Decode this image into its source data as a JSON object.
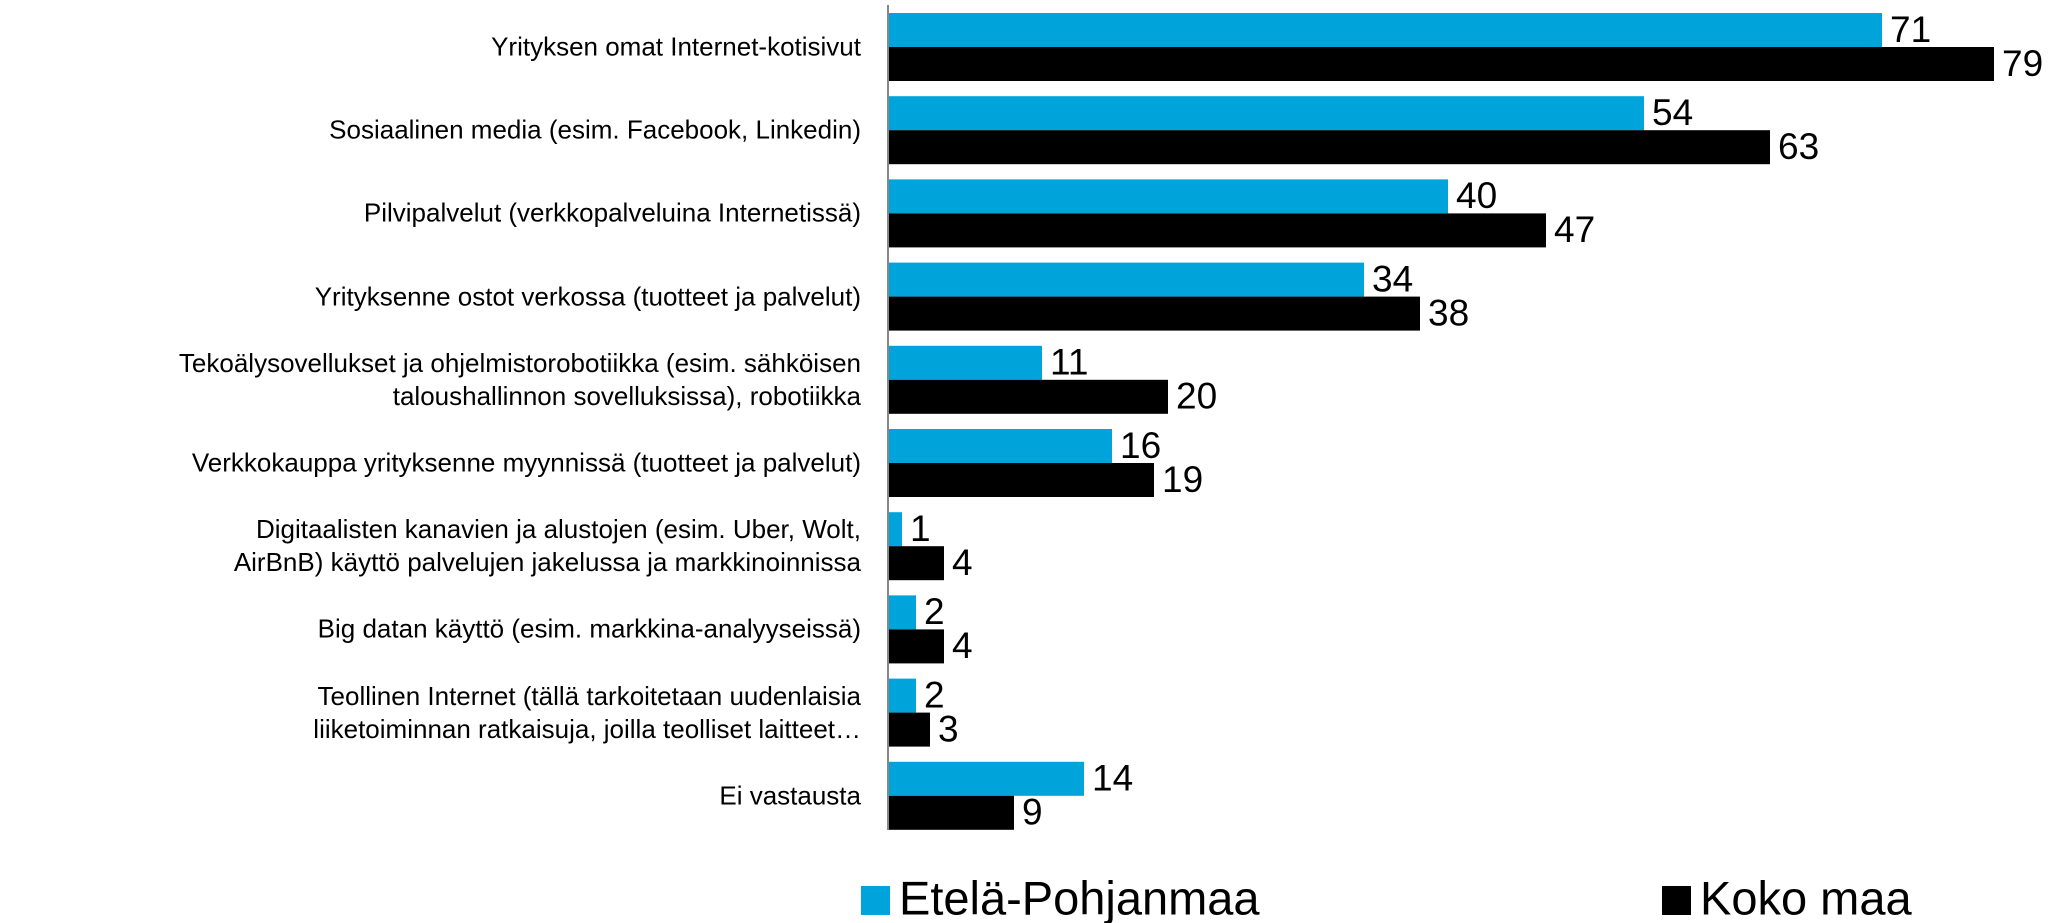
{
  "chart_data": {
    "type": "hbar",
    "categories": [
      "Yrityksen omat Internet-kotisivut",
      "Sosiaalinen media (esim. Facebook, Linkedin)",
      "Pilvipalvelut  (verkkopalveluina Internetissä)",
      "Yrityksenne ostot verkossa (tuotteet ja palvelut)",
      "Tekoälysovellukset ja ohjelmistorobotiikka (esim. sähköisen\ntaloushallinnon sovelluksissa), robotiikka",
      "Verkkokauppa yrityksenne myynnissä (tuotteet ja palvelut)",
      "Digitaalisten kanavien ja alustojen (esim. Uber, Wolt,\nAirBnB) käyttö palvelujen jakelussa ja markkinoinnissa",
      "Big datan käyttö (esim. markkina-analyyseissä)",
      "Teollinen Internet (tällä tarkoitetaan uudenlaisia\nliiketoiminnan ratkaisuja, joilla teolliset laitteet…",
      "Ei vastausta"
    ],
    "series": [
      {
        "name": "Etelä-Pohjanmaa",
        "color": "#00a3da",
        "values": [
          71,
          54,
          40,
          34,
          11,
          16,
          1,
          2,
          2,
          14
        ]
      },
      {
        "name": "Koko maa",
        "color": "#000000",
        "values": [
          79,
          63,
          47,
          38,
          20,
          19,
          4,
          4,
          3,
          9
        ]
      }
    ],
    "xlim": [
      0,
      80
    ],
    "legend": "bottom"
  }
}
